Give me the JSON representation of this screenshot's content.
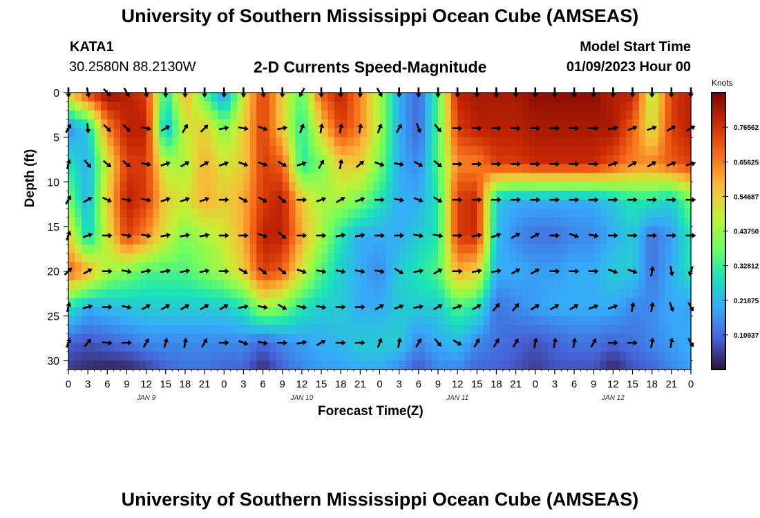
{
  "header": {
    "title": "University of Southern Mississippi Ocean Cube (AMSEAS)",
    "station_id": "KATA1",
    "station_coords": "30.2580N  88.2130W",
    "subtitle": "2-D Currents Speed-Magnitude",
    "model_start_label": "Model Start Time",
    "model_start_value": "01/09/2023 Hour 00"
  },
  "footer": {
    "title": "University of Southern Mississippi Ocean Cube (AMSEAS)"
  },
  "chart_data": {
    "type": "heatmap",
    "title": "2-D Currents Speed-Magnitude",
    "xlabel": "Forecast Time(Z)",
    "ylabel": "Depth (ft)",
    "xlim": [
      0,
      96
    ],
    "ylim": [
      31,
      0
    ],
    "x_tick_hours": [
      0,
      3,
      6,
      9,
      12,
      15,
      18,
      21,
      24,
      27,
      30,
      33,
      36,
      39,
      42,
      45,
      48,
      51,
      54,
      57,
      60,
      63,
      66,
      69,
      72,
      75,
      78,
      81,
      84,
      87,
      90,
      93,
      96
    ],
    "x_tick_labels": [
      "0",
      "3",
      "6",
      "9",
      "12",
      "15",
      "18",
      "21",
      "0",
      "3",
      "6",
      "9",
      "12",
      "15",
      "18",
      "21",
      "0",
      "3",
      "6",
      "9",
      "12",
      "15",
      "18",
      "21",
      "0",
      "3",
      "6",
      "9",
      "12",
      "15",
      "18",
      "21",
      "0"
    ],
    "day_labels": [
      {
        "hour": 12,
        "text": "JAN 9"
      },
      {
        "hour": 36,
        "text": "JAN 10"
      },
      {
        "hour": 60,
        "text": "JAN 11"
      },
      {
        "hour": 84,
        "text": "JAN 12"
      }
    ],
    "y_ticks": [
      0,
      5,
      10,
      15,
      20,
      25,
      30
    ],
    "colorbar": {
      "units": "Knots",
      "min": 0.0,
      "max": 0.875,
      "ticks": [
        0.109375,
        0.21875,
        0.328125,
        0.4375,
        0.546875,
        0.65625,
        0.765625
      ],
      "tick_labels": [
        "0.10937",
        "0.21875",
        "0.32812",
        "0.43750",
        "0.54687",
        "0.65625",
        "0.76562"
      ],
      "colors": [
        "#30123b",
        "#4662d7",
        "#36aaf9",
        "#1ae4b6",
        "#72fe5e",
        "#c7ef34",
        "#faba39",
        "#f66b19",
        "#cb2a04",
        "#7a0403"
      ]
    },
    "grid_time_hours": [
      0,
      3,
      6,
      9,
      12,
      15,
      18,
      21,
      24,
      27,
      30,
      33,
      36,
      39,
      42,
      45,
      48,
      51,
      54,
      57,
      60,
      63,
      66,
      69,
      72,
      75,
      78,
      81,
      84,
      87,
      90,
      93,
      96
    ],
    "grid_depths_ft": [
      0,
      4,
      8,
      12,
      16,
      20,
      24,
      28,
      31
    ],
    "speed_knots": [
      [
        0.55,
        0.75,
        0.85,
        0.8,
        0.75,
        0.3,
        0.6,
        0.35,
        0.15,
        0.5,
        0.75,
        0.55,
        0.35,
        0.7,
        0.8,
        0.65,
        0.45,
        0.2,
        0.1,
        0.35,
        0.8,
        0.82,
        0.82,
        0.82,
        0.85,
        0.85,
        0.85,
        0.85,
        0.8,
        0.8,
        0.45,
        0.75,
        0.8
      ],
      [
        0.15,
        0.25,
        0.65,
        0.8,
        0.8,
        0.2,
        0.5,
        0.55,
        0.4,
        0.55,
        0.75,
        0.55,
        0.3,
        0.55,
        0.75,
        0.65,
        0.45,
        0.2,
        0.1,
        0.35,
        0.75,
        0.8,
        0.8,
        0.8,
        0.82,
        0.82,
        0.82,
        0.82,
        0.82,
        0.7,
        0.5,
        0.75,
        0.8
      ],
      [
        0.3,
        0.2,
        0.5,
        0.75,
        0.75,
        0.45,
        0.45,
        0.6,
        0.5,
        0.55,
        0.75,
        0.7,
        0.3,
        0.4,
        0.55,
        0.55,
        0.4,
        0.2,
        0.15,
        0.35,
        0.65,
        0.65,
        0.75,
        0.75,
        0.78,
        0.78,
        0.78,
        0.78,
        0.72,
        0.65,
        0.65,
        0.7,
        0.75
      ],
      [
        0.4,
        0.2,
        0.55,
        0.8,
        0.75,
        0.55,
        0.5,
        0.6,
        0.55,
        0.6,
        0.75,
        0.8,
        0.55,
        0.45,
        0.45,
        0.4,
        0.3,
        0.2,
        0.2,
        0.3,
        0.75,
        0.78,
        0.25,
        0.2,
        0.2,
        0.2,
        0.2,
        0.2,
        0.25,
        0.3,
        0.3,
        0.25,
        0.4
      ],
      [
        0.55,
        0.25,
        0.5,
        0.75,
        0.65,
        0.5,
        0.4,
        0.45,
        0.5,
        0.6,
        0.8,
        0.8,
        0.6,
        0.45,
        0.3,
        0.2,
        0.2,
        0.2,
        0.25,
        0.3,
        0.75,
        0.78,
        0.22,
        0.15,
        0.12,
        0.12,
        0.15,
        0.15,
        0.2,
        0.25,
        0.12,
        0.18,
        0.3
      ],
      [
        0.7,
        0.6,
        0.45,
        0.4,
        0.35,
        0.35,
        0.35,
        0.4,
        0.45,
        0.55,
        0.75,
        0.7,
        0.5,
        0.35,
        0.25,
        0.2,
        0.15,
        0.25,
        0.3,
        0.35,
        0.6,
        0.55,
        0.2,
        0.2,
        0.18,
        0.18,
        0.2,
        0.2,
        0.25,
        0.25,
        0.12,
        0.2,
        0.3
      ],
      [
        0.3,
        0.2,
        0.22,
        0.24,
        0.25,
        0.25,
        0.25,
        0.25,
        0.25,
        0.3,
        0.45,
        0.4,
        0.3,
        0.25,
        0.25,
        0.2,
        0.2,
        0.25,
        0.25,
        0.25,
        0.35,
        0.3,
        0.12,
        0.15,
        0.18,
        0.2,
        0.2,
        0.2,
        0.2,
        0.15,
        0.15,
        0.2,
        0.18
      ],
      [
        0.1,
        0.08,
        0.1,
        0.12,
        0.15,
        0.15,
        0.15,
        0.15,
        0.15,
        0.15,
        0.1,
        0.15,
        0.18,
        0.2,
        0.22,
        0.25,
        0.25,
        0.25,
        0.15,
        0.2,
        0.22,
        0.15,
        0.12,
        0.1,
        0.08,
        0.1,
        0.12,
        0.12,
        0.1,
        0.12,
        0.15,
        0.18,
        0.2
      ],
      [
        0.05,
        0.03,
        0.02,
        0.02,
        0.05,
        0.1,
        0.12,
        0.12,
        0.1,
        0.1,
        0.03,
        0.1,
        0.15,
        0.18,
        0.18,
        0.2,
        0.2,
        0.15,
        0.08,
        0.15,
        0.15,
        0.1,
        0.1,
        0.08,
        0.05,
        0.08,
        0.08,
        0.08,
        0.02,
        0.08,
        0.1,
        0.15,
        0.18
      ]
    ],
    "vectors": {
      "depths_ft": [
        0,
        4,
        8,
        12,
        16,
        20,
        24,
        28
      ],
      "hours": [
        0,
        3,
        6,
        9,
        12,
        15,
        18,
        21,
        24,
        27,
        30,
        33,
        36,
        39,
        42,
        45,
        48,
        51,
        54,
        57,
        60,
        63,
        66,
        69,
        72,
        75,
        78,
        81,
        84,
        87,
        90,
        93,
        96
      ],
      "direction_deg": [
        [
          180,
          170,
          135,
          150,
          170,
          180,
          180,
          180,
          180,
          180,
          170,
          180,
          210,
          180,
          180,
          180,
          150,
          180,
          180,
          180,
          180,
          180,
          180,
          180,
          180,
          180,
          180,
          180,
          180,
          180,
          180,
          180,
          180
        ],
        [
          30,
          175,
          135,
          135,
          100,
          60,
          30,
          45,
          80,
          100,
          110,
          80,
          20,
          10,
          10,
          10,
          20,
          30,
          160,
          140,
          90,
          90,
          90,
          90,
          90,
          90,
          90,
          90,
          80,
          70,
          70,
          60,
          60
        ],
        [
          15,
          140,
          130,
          130,
          100,
          70,
          60,
          60,
          70,
          110,
          110,
          120,
          70,
          30,
          10,
          50,
          110,
          100,
          120,
          130,
          90,
          90,
          90,
          90,
          90,
          90,
          90,
          90,
          70,
          60,
          60,
          70,
          75
        ],
        [
          30,
          60,
          115,
          100,
          100,
          70,
          70,
          70,
          90,
          120,
          120,
          130,
          90,
          70,
          60,
          70,
          90,
          100,
          110,
          120,
          90,
          90,
          90,
          90,
          90,
          90,
          90,
          90,
          90,
          90,
          90,
          90,
          90
        ],
        [
          20,
          70,
          90,
          100,
          100,
          80,
          80,
          80,
          90,
          90,
          110,
          130,
          90,
          90,
          80,
          80,
          90,
          90,
          100,
          100,
          90,
          80,
          70,
          60,
          60,
          90,
          110,
          100,
          90,
          90,
          90,
          90,
          90
        ],
        [
          45,
          60,
          90,
          100,
          80,
          80,
          80,
          80,
          90,
          120,
          130,
          130,
          110,
          100,
          100,
          100,
          100,
          120,
          80,
          60,
          90,
          80,
          80,
          60,
          60,
          90,
          90,
          90,
          110,
          110,
          10,
          170,
          200
        ],
        [
          15,
          75,
          90,
          100,
          60,
          60,
          60,
          60,
          60,
          80,
          100,
          120,
          100,
          100,
          90,
          90,
          60,
          70,
          80,
          60,
          70,
          60,
          40,
          40,
          60,
          60,
          60,
          70,
          70,
          10,
          10,
          160,
          150
        ],
        [
          20,
          40,
          95,
          90,
          30,
          15,
          10,
          30,
          90,
          110,
          100,
          90,
          80,
          60,
          90,
          90,
          20,
          10,
          30,
          140,
          120,
          30,
          30,
          30,
          10,
          10,
          10,
          30,
          90,
          90,
          10,
          10,
          150
        ]
      ]
    }
  }
}
